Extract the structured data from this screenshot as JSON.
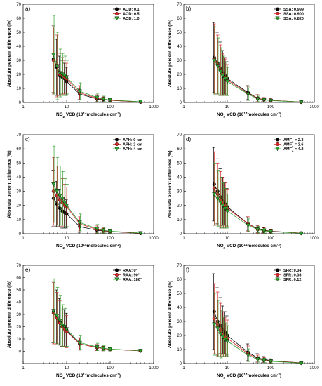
{
  "colors": {
    "black": "#000000",
    "red": "#d62728",
    "green": "#2ca02c"
  },
  "chart_data": [
    {
      "type": "scatter",
      "panel": "a)",
      "xlabel": "NO2 VCD (10^14 molecules cm^-2)",
      "ylabel": "Absolute percent difference (%)",
      "x_scale": "log",
      "xlim": [
        1,
        1000
      ],
      "ylim": [
        0,
        70
      ],
      "xticks": [
        "1",
        "10",
        "100",
        "1000"
      ],
      "yticks": [
        0,
        10,
        20,
        30,
        40,
        50,
        60,
        70
      ],
      "legend_position": "top-right",
      "x": [
        5,
        6,
        7,
        8,
        9,
        10,
        20,
        50,
        70,
        100,
        500
      ],
      "series": [
        {
          "name": "AOD: 0.1",
          "color": "black",
          "marker": "circle",
          "values": [
            31,
            25,
            19,
            18,
            17,
            15,
            6,
            2.5,
            2,
            1.5,
            0.3
          ],
          "err": [
            24,
            20,
            14,
            12,
            11,
            10,
            4,
            2,
            1.5,
            1,
            0.2
          ]
        },
        {
          "name": "AOD: 0.5",
          "color": "red",
          "marker": "circle",
          "values": [
            30,
            26,
            20,
            19,
            18,
            17,
            7,
            3,
            2.2,
            1.6,
            0.4
          ],
          "err": [
            24,
            22,
            15,
            13,
            12,
            11,
            5,
            2.5,
            1.8,
            1.2,
            0.3
          ]
        },
        {
          "name": "AOD: 1.0",
          "color": "green",
          "marker": "triangle-down",
          "values": [
            34,
            26,
            21,
            20,
            19,
            18,
            8,
            3.5,
            2.5,
            1.8,
            0.5
          ],
          "err": [
            28,
            24,
            17,
            15,
            14,
            12,
            6,
            3,
            2,
            1.4,
            0.3
          ]
        }
      ]
    },
    {
      "type": "scatter",
      "panel": "b)",
      "xlabel": "NO2 VCD (10^14 molecules cm^-2)",
      "ylabel": "Absolute percent difference (%)",
      "x_scale": "log",
      "xlim": [
        1,
        1000
      ],
      "ylim": [
        0,
        70
      ],
      "xticks": [
        "1",
        "10",
        "100",
        "1000"
      ],
      "yticks": [
        0,
        10,
        20,
        30,
        40,
        50,
        60,
        70
      ],
      "legend_position": "top-right",
      "x": [
        5,
        6,
        7,
        8,
        9,
        10,
        30,
        50,
        70,
        100,
        500
      ],
      "series": [
        {
          "name": "SSA: 0.999",
          "color": "black",
          "marker": "circle",
          "values": [
            32,
            28,
            24,
            21,
            19,
            17,
            7,
            3,
            2,
            1.5,
            0.3
          ],
          "err": [
            25,
            22,
            19,
            16,
            13,
            12,
            5,
            2.5,
            1.5,
            1.2,
            0.2
          ]
        },
        {
          "name": "SSA: 0.900",
          "color": "red",
          "marker": "circle",
          "values": [
            31,
            27,
            23,
            20,
            18,
            16,
            6.5,
            3,
            2,
            1.5,
            0.3
          ],
          "err": [
            25,
            21,
            18,
            15,
            13,
            11,
            5,
            2.5,
            1.5,
            1.1,
            0.2
          ]
        },
        {
          "name": "SSA: 0.820",
          "color": "green",
          "marker": "triangle-down",
          "values": [
            30,
            26,
            22,
            19,
            17,
            15,
            6,
            2.5,
            1.8,
            1.3,
            0.3
          ],
          "err": [
            24,
            20,
            17,
            14,
            12,
            10,
            4.5,
            2,
            1.4,
            1,
            0.2
          ]
        }
      ]
    },
    {
      "type": "scatter",
      "panel": "c)",
      "xlabel": "NO2 VCD (10^14 molecules cm^-2)",
      "ylabel": "Absolute percent difference (%)",
      "x_scale": "log",
      "xlim": [
        1,
        1000
      ],
      "ylim": [
        0,
        70
      ],
      "xticks": [
        "1",
        "10",
        "100",
        "1000"
      ],
      "yticks": [
        0,
        10,
        20,
        30,
        40,
        50,
        60,
        70
      ],
      "legend_position": "top-right",
      "x": [
        5,
        6,
        7,
        8,
        9,
        10,
        20,
        50,
        70,
        100,
        500
      ],
      "series": [
        {
          "name": "APH: 0 km",
          "color": "black",
          "marker": "circle",
          "values": [
            25,
            21,
            18,
            16,
            15,
            14,
            5,
            2.5,
            2,
            1.5,
            0.3
          ],
          "err": [
            20,
            16,
            13,
            12,
            11,
            10,
            4,
            2,
            1.5,
            1,
            0.2
          ]
        },
        {
          "name": "APH: 2 km",
          "color": "red",
          "marker": "circle",
          "values": [
            30,
            27,
            24,
            22,
            20,
            19,
            7,
            3,
            2.2,
            1.6,
            0.4
          ],
          "err": [
            24,
            21,
            19,
            17,
            15,
            14,
            5,
            2.5,
            1.8,
            1.2,
            0.3
          ]
        },
        {
          "name": "APH: 4 km",
          "color": "green",
          "marker": "triangle-down",
          "values": [
            35,
            30,
            27,
            25,
            22,
            20,
            8,
            3.5,
            2.5,
            1.8,
            0.5
          ],
          "err": [
            27,
            24,
            21,
            19,
            17,
            15,
            6,
            3,
            2,
            1.4,
            0.3
          ]
        }
      ]
    },
    {
      "type": "scatter",
      "panel": "d)",
      "xlabel": "NO2 VCD (10^14 molecules cm^-2)",
      "ylabel": "Absolute percent difference (%)",
      "x_scale": "log",
      "xlim": [
        1,
        1000
      ],
      "ylim": [
        0,
        70
      ],
      "xticks": [
        "1",
        "10",
        "100",
        "1000"
      ],
      "yticks": [
        0,
        10,
        20,
        30,
        40,
        50,
        60,
        70
      ],
      "legend_position": "top-right",
      "x": [
        5,
        6,
        7,
        8,
        9,
        10,
        30,
        50,
        70,
        100,
        500
      ],
      "series": [
        {
          "name": "AMF0 = 2.3",
          "label_main": "AMF",
          "label_sub": "0",
          "label_rest": " = 2.3",
          "color": "black",
          "marker": "circle",
          "values": [
            35,
            30,
            26,
            23,
            21,
            19,
            7,
            3.5,
            2.5,
            1.8,
            0.4
          ],
          "err": [
            26,
            23,
            20,
            17,
            15,
            13,
            5,
            2.5,
            1.8,
            1.3,
            0.3
          ]
        },
        {
          "name": "AMF0 = 2.6",
          "label_main": "AMF",
          "label_sub": "0",
          "label_rest": " = 2.6",
          "color": "red",
          "marker": "circle",
          "values": [
            32,
            28,
            24,
            22,
            20,
            18,
            7,
            3,
            2.2,
            1.6,
            0.4
          ],
          "err": [
            26,
            22,
            20,
            18,
            16,
            13,
            5,
            2.5,
            1.8,
            1.2,
            0.3
          ]
        },
        {
          "name": "AMF0 = 4.2",
          "label_main": "AMF",
          "label_sub": "0",
          "label_rest": " = 4.2",
          "color": "green",
          "marker": "triangle-down",
          "values": [
            28,
            25,
            22,
            20,
            18,
            16,
            6,
            3,
            2,
            1.5,
            0.3
          ],
          "err": [
            22,
            20,
            18,
            16,
            14,
            12,
            4.5,
            2.2,
            1.6,
            1.1,
            0.2
          ]
        }
      ]
    },
    {
      "type": "scatter",
      "panel": "e)",
      "xlabel": "NO2 VCD (10^14 molecules cm^-2)",
      "ylabel": "Absolute percent difference (%)",
      "x_scale": "log",
      "xlim": [
        1,
        1000
      ],
      "ylim": [
        -10,
        70
      ],
      "xticks": [
        "1",
        "10",
        "100",
        "1000"
      ],
      "yticks": [
        0,
        10,
        20,
        30,
        40,
        50,
        60,
        70
      ],
      "legend_position": "top-right",
      "x": [
        5,
        6,
        7,
        8,
        9,
        10,
        20,
        50,
        70,
        100,
        500
      ],
      "series": [
        {
          "name": "RAA: 0°",
          "color": "black",
          "marker": "circle",
          "values": [
            32,
            28,
            24,
            20,
            19,
            17,
            6,
            3,
            2.2,
            1.6,
            0.4
          ],
          "err": [
            25,
            22,
            19,
            16,
            15,
            14,
            5,
            2.5,
            1.8,
            1.2,
            0.3
          ]
        },
        {
          "name": "RAA: 90°",
          "color": "red",
          "marker": "circle",
          "values": [
            31,
            27,
            23,
            20,
            18,
            16,
            6,
            3,
            2.2,
            1.6,
            0.4
          ],
          "err": [
            25,
            21,
            18,
            16,
            14,
            13,
            5,
            2.5,
            1.8,
            1.2,
            0.3
          ]
        },
        {
          "name": "RAA: 180°",
          "color": "green",
          "marker": "triangle-down",
          "values": [
            33,
            29,
            25,
            21,
            20,
            18,
            7,
            3.5,
            2.5,
            1.8,
            0.5
          ],
          "err": [
            26,
            23,
            20,
            17,
            15,
            14,
            5.5,
            3,
            2,
            1.4,
            0.3
          ]
        }
      ]
    },
    {
      "type": "scatter",
      "panel": "f)",
      "xlabel": "NO2 VCD (10^14 molecules cm^-2)",
      "ylabel": "Absolute percent difference (%)",
      "x_scale": "log",
      "xlim": [
        1,
        1000
      ],
      "ylim": [
        0,
        70
      ],
      "xticks": [
        "1",
        "10",
        "100",
        "1000"
      ],
      "yticks": [
        0,
        10,
        20,
        30,
        40,
        50,
        60,
        70
      ],
      "legend_position": "top-right",
      "x": [
        5,
        6,
        7,
        8,
        9,
        10,
        30,
        50,
        70,
        100,
        500
      ],
      "series": [
        {
          "name": "SFR: 0.04",
          "color": "black",
          "marker": "circle",
          "values": [
            37,
            30,
            27,
            24,
            22,
            20,
            8,
            4,
            3,
            2,
            0.5
          ],
          "err": [
            27,
            24,
            20,
            17,
            15,
            14,
            6,
            3,
            2,
            1.4,
            0.3
          ]
        },
        {
          "name": "SFR: 0.08",
          "color": "red",
          "marker": "circle",
          "values": [
            32,
            28,
            24,
            21,
            19,
            18,
            7,
            3.5,
            2.5,
            1.8,
            0.4
          ],
          "err": [
            25,
            23,
            19,
            16,
            14,
            13,
            5.5,
            2.5,
            1.8,
            1.3,
            0.3
          ]
        },
        {
          "name": "SFR: 0.12",
          "color": "green",
          "marker": "triangle-down",
          "values": [
            28,
            25,
            21,
            19,
            17,
            16,
            6,
            3,
            2.2,
            1.6,
            0.3
          ],
          "err": [
            22,
            20,
            17,
            14,
            12,
            11,
            4.5,
            2,
            1.6,
            1.1,
            0.2
          ]
        }
      ]
    }
  ]
}
